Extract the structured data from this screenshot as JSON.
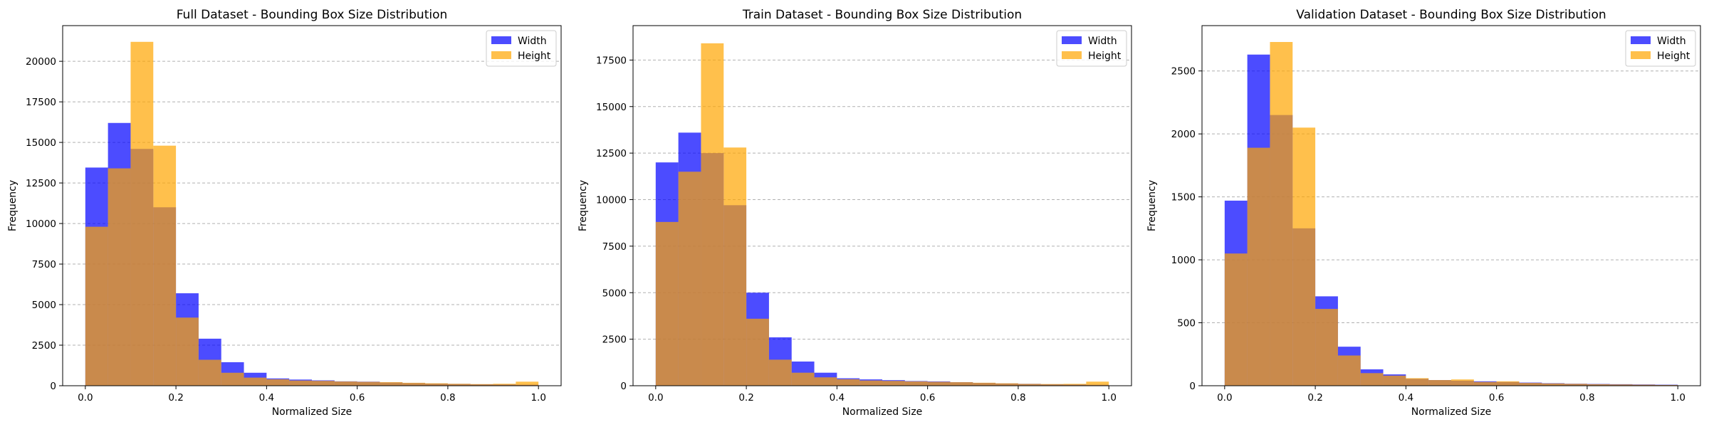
{
  "colors": {
    "width": "#0000FF",
    "height": "#FFA500",
    "grid": "#b0b0b0"
  },
  "chart_data": [
    {
      "type": "bar",
      "title": "Full Dataset - Bounding Box Size Distribution",
      "xlabel": "Normalized Size",
      "ylabel": "Frequency",
      "xlim": [
        -0.05,
        1.05
      ],
      "ylim": [
        0,
        22200
      ],
      "xticks": [
        0.0,
        0.2,
        0.4,
        0.6,
        0.8,
        1.0
      ],
      "xtick_labels": [
        "0.0",
        "0.2",
        "0.4",
        "0.6",
        "0.8",
        "1.0"
      ],
      "yticks": [
        0,
        2500,
        5000,
        7500,
        10000,
        12500,
        15000,
        17500,
        20000
      ],
      "ytick_labels": [
        "0",
        "2500",
        "5000",
        "7500",
        "10000",
        "12500",
        "15000",
        "17500",
        "20000"
      ],
      "bin_edges": [
        0.0,
        0.05,
        0.1,
        0.15,
        0.2,
        0.25,
        0.3,
        0.35,
        0.4,
        0.45,
        0.5,
        0.55,
        0.6,
        0.65,
        0.7,
        0.75,
        0.8,
        0.85,
        0.9,
        0.95,
        1.0
      ],
      "grid": "y-dashed",
      "legend_position": "top-right",
      "series": [
        {
          "name": "Width",
          "values": [
            13450,
            16200,
            14600,
            11000,
            5700,
            2900,
            1450,
            800,
            450,
            380,
            330,
            270,
            250,
            200,
            160,
            130,
            110,
            90,
            80,
            60
          ]
        },
        {
          "name": "Height",
          "values": [
            9800,
            13400,
            21200,
            14800,
            4200,
            1600,
            800,
            500,
            400,
            320,
            300,
            260,
            240,
            220,
            180,
            150,
            120,
            100,
            120,
            250
          ]
        }
      ]
    },
    {
      "type": "bar",
      "title": "Train Dataset - Bounding Box Size Distribution",
      "xlabel": "Normalized Size",
      "ylabel": "Frequency",
      "xlim": [
        -0.05,
        1.05
      ],
      "ylim": [
        0,
        19350
      ],
      "xticks": [
        0.0,
        0.2,
        0.4,
        0.6,
        0.8,
        1.0
      ],
      "xtick_labels": [
        "0.0",
        "0.2",
        "0.4",
        "0.6",
        "0.8",
        "1.0"
      ],
      "yticks": [
        0,
        2500,
        5000,
        7500,
        10000,
        12500,
        15000,
        17500
      ],
      "ytick_labels": [
        "0",
        "2500",
        "5000",
        "7500",
        "10000",
        "12500",
        "15000",
        "17500"
      ],
      "bin_edges": [
        0.0,
        0.05,
        0.1,
        0.15,
        0.2,
        0.25,
        0.3,
        0.35,
        0.4,
        0.45,
        0.5,
        0.55,
        0.6,
        0.65,
        0.7,
        0.75,
        0.8,
        0.85,
        0.9,
        0.95,
        1.0
      ],
      "grid": "y-dashed",
      "legend_position": "top-right",
      "series": [
        {
          "name": "Width",
          "values": [
            12000,
            13600,
            12500,
            9700,
            5000,
            2600,
            1300,
            700,
            400,
            340,
            300,
            250,
            230,
            190,
            150,
            120,
            100,
            80,
            70,
            50
          ]
        },
        {
          "name": "Height",
          "values": [
            8800,
            11500,
            18400,
            12800,
            3600,
            1400,
            700,
            450,
            350,
            280,
            260,
            230,
            210,
            190,
            160,
            130,
            100,
            90,
            100,
            220
          ]
        }
      ]
    },
    {
      "type": "bar",
      "title": "Validation Dataset - Bounding Box Size Distribution",
      "xlabel": "Normalized Size",
      "ylabel": "Frequency",
      "xlim": [
        -0.05,
        1.05
      ],
      "ylim": [
        0,
        2860
      ],
      "xticks": [
        0.0,
        0.2,
        0.4,
        0.6,
        0.8,
        1.0
      ],
      "xtick_labels": [
        "0.0",
        "0.2",
        "0.4",
        "0.6",
        "0.8",
        "1.0"
      ],
      "yticks": [
        0,
        500,
        1000,
        1500,
        2000,
        2500
      ],
      "ytick_labels": [
        "0",
        "500",
        "1000",
        "1500",
        "2000",
        "2500"
      ],
      "bin_edges": [
        0.0,
        0.05,
        0.1,
        0.15,
        0.2,
        0.25,
        0.3,
        0.35,
        0.4,
        0.45,
        0.5,
        0.55,
        0.6,
        0.65,
        0.7,
        0.75,
        0.8,
        0.85,
        0.9,
        0.95,
        1.0
      ],
      "grid": "y-dashed",
      "legend_position": "top-right",
      "series": [
        {
          "name": "Width",
          "values": [
            1470,
            2630,
            2150,
            1250,
            710,
            310,
            130,
            90,
            55,
            45,
            40,
            35,
            30,
            25,
            20,
            16,
            14,
            12,
            10,
            8
          ]
        },
        {
          "name": "Height",
          "values": [
            1050,
            1890,
            2730,
            2050,
            610,
            240,
            100,
            80,
            60,
            45,
            50,
            30,
            35,
            22,
            18,
            15,
            12,
            10,
            8,
            6
          ]
        }
      ]
    }
  ]
}
